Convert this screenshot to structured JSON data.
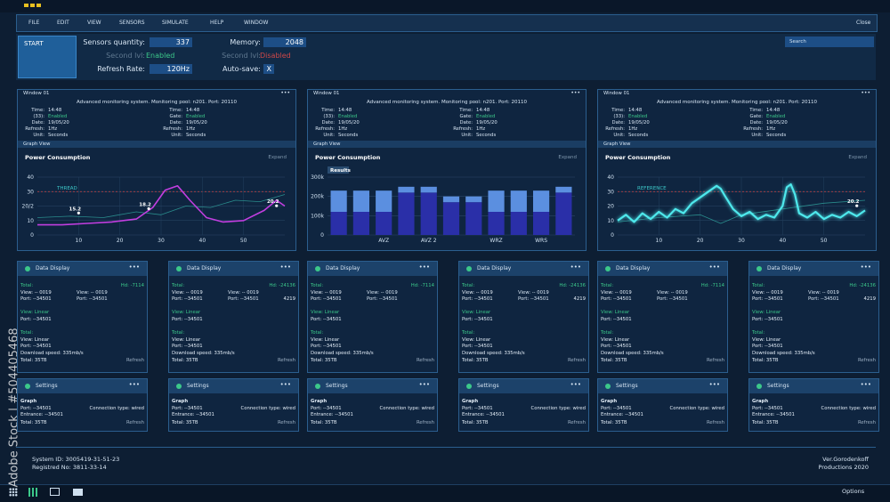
{
  "menu": [
    "FILE",
    "EDIT",
    "VIEW",
    "SENSORS",
    "SIMULATE",
    "HELP",
    "WINDOW"
  ],
  "close": "Close",
  "control": {
    "start": "START",
    "search": "Search",
    "fields": [
      {
        "label": "Sensors quantity:",
        "value": "337",
        "boxed": true
      },
      {
        "label": "Second lvl:",
        "value": "Enabled",
        "color": "#3cc88a"
      },
      {
        "label": "Refresh Rate:",
        "value": "120Hz",
        "boxed": true
      },
      {
        "label": "Memory:",
        "value": "2048",
        "boxed": true
      },
      {
        "label": "Second lvl:",
        "value": "Disabled",
        "color": "#d04848"
      },
      {
        "label": "Auto-save:",
        "value": "X",
        "boxed": true
      }
    ]
  },
  "windows": [
    {
      "title": "Window 01",
      "dots": "•••",
      "info": "Advanced monitoring system. Monitoring pool: n201. Port: 20110",
      "left": [
        [
          "Time:",
          "14:48"
        ],
        [
          "(33):",
          "Enabled"
        ],
        [
          "Date:",
          "19/05/20"
        ],
        [
          "Refresh:",
          "1Hz"
        ],
        [
          "Unit:",
          "Seconds"
        ]
      ],
      "right": [
        [
          "Time:",
          "14:48"
        ],
        [
          "Gate:",
          "Enabled"
        ],
        [
          "Date:",
          "19/05/20"
        ],
        [
          "Refresh:",
          "1Hz"
        ],
        [
          "Unit:",
          "Seconds"
        ]
      ],
      "graph_view": "Graph View",
      "chart": {
        "type": "line",
        "title": "Power Consumption",
        "expand": "Expand",
        "annotation": "THREAD",
        "xlim": [
          0,
          60
        ],
        "xticks": [
          10,
          20,
          30,
          40,
          50
        ],
        "ylim": [
          0,
          40
        ],
        "yticks": [
          0,
          10,
          {
            "value": 20,
            "label": "20/2"
          },
          30,
          40
        ],
        "reference_line": 30,
        "series": [
          {
            "color": "#2a8c8c",
            "x": [
              0,
              8,
              16,
              24,
              30,
              36,
              42,
              48,
              54,
              60
            ],
            "values": [
              12,
              13,
              12,
              16,
              14,
              20,
              19,
              24,
              23,
              28
            ]
          },
          {
            "color": "#c23ee0",
            "x": [
              0,
              6,
              12,
              18,
              24,
              28,
              31,
              34,
              37,
              41,
              45,
              50,
              55,
              58,
              60
            ],
            "values": [
              7,
              7,
              8,
              9,
              11,
              19,
              31,
              34,
              24,
              12,
              9,
              10,
              17,
              24,
              20
            ]
          },
          {
            "color": "#ffffff",
            "markers": true,
            "x": [
              10,
              27,
              58
            ],
            "values": [
              15.2,
              18.2,
              20.2
            ]
          }
        ]
      }
    },
    {
      "title": "Window 01",
      "dots": "•••",
      "info": "Advanced monitoring system. Monitoring pool: n201. Port: 20110",
      "left": [
        [
          "Time:",
          "14:48"
        ],
        [
          "(33):",
          "Enabled"
        ],
        [
          "Date:",
          "19/05/20"
        ],
        [
          "Refresh:",
          "1Hz"
        ],
        [
          "Unit:",
          "Seconds"
        ]
      ],
      "right": [
        [
          "Time:",
          "14:48"
        ],
        [
          "Gate:",
          "Enabled"
        ],
        [
          "Date:",
          "19/05/20"
        ],
        [
          "Refresh:",
          "1Hz"
        ],
        [
          "Unit:",
          "Seconds"
        ]
      ],
      "graph_view": "Graph View",
      "chart": {
        "type": "bar",
        "title": "Power Consumption",
        "expand": "Expand",
        "annotation": "Results",
        "categories": [
          null,
          null,
          "AVZ",
          null,
          "AVZ 2",
          null,
          null,
          "WRZ",
          null,
          "WRS",
          null
        ],
        "ylim": [
          0,
          300000
        ],
        "yticks": [
          0,
          {
            "value": 100000,
            "label": "100k"
          },
          {
            "value": 200000,
            "label": "200k"
          },
          {
            "value": 300000,
            "label": "300k"
          }
        ],
        "grid": true,
        "series": [
          {
            "color": "#2a2fa8",
            "values": [
              120000,
              120000,
              120000,
              220000,
              220000,
              170000,
              170000,
              120000,
              120000,
              120000,
              220000
            ]
          },
          {
            "color": "#5b8fe0",
            "values": [
              110000,
              110000,
              110000,
              30000,
              30000,
              30000,
              30000,
              110000,
              110000,
              110000,
              30000
            ]
          }
        ]
      }
    },
    {
      "title": "Window 01",
      "dots": "•••",
      "info": "Advanced monitoring system. Monitoring pool: n201. Port: 20110",
      "left": [
        [
          "Time:",
          "14:48"
        ],
        [
          "(33):",
          "Enabled"
        ],
        [
          "Date:",
          "19/05/20"
        ],
        [
          "Refresh:",
          "1Hz"
        ],
        [
          "Unit:",
          "Seconds"
        ]
      ],
      "right": [
        [
          "Time:",
          "14:48"
        ],
        [
          "Gate:",
          "Enabled"
        ],
        [
          "Date:",
          "19/05/20"
        ],
        [
          "Refresh:",
          "1Hz"
        ],
        [
          "Unit:",
          "Seconds"
        ]
      ],
      "graph_view": "Graph View",
      "chart": {
        "type": "line",
        "title": "Power Consumption",
        "expand": "Expand",
        "annotation": "REFERENCE",
        "xlim": [
          0,
          60
        ],
        "xticks": [
          10,
          20,
          30,
          40,
          50
        ],
        "ylim": [
          0,
          40
        ],
        "yticks": [
          0,
          10,
          20,
          30,
          40
        ],
        "reference_line": 30,
        "series": [
          {
            "color": "#2a8c8c",
            "x": [
              0,
              10,
              20,
              25,
              30,
              40,
              50,
              60
            ],
            "values": [
              9,
              12,
              14,
              8,
              14,
              18,
              22,
              24
            ]
          },
          {
            "color": "#4ee8ec",
            "x": [
              0,
              2,
              4,
              6,
              8,
              10,
              12,
              14,
              16,
              18,
              20,
              22,
              24,
              25,
              26,
              28,
              30,
              32,
              34,
              36,
              38,
              40,
              41,
              42,
              43,
              44,
              46,
              48,
              50,
              52,
              54,
              56,
              58,
              60
            ],
            "values": [
              10,
              14,
              9,
              15,
              11,
              16,
              12,
              18,
              15,
              22,
              26,
              30,
              34,
              32,
              27,
              18,
              13,
              16,
              11,
              14,
              12,
              20,
              33,
              35,
              28,
              15,
              12,
              16,
              11,
              14,
              12,
              16,
              13,
              17
            ]
          },
          {
            "color": "#ffffff",
            "markers": true,
            "x": [
              58
            ],
            "values": [
              20.2
            ]
          }
        ]
      }
    }
  ],
  "data_displays": [
    {
      "title": "Data Display",
      "dots": "•••",
      "rows": [
        {
          "left": "Total:",
          "right": "Hd: -7114",
          "accent": true
        },
        {
          "left": "View: -- 0019",
          "mid": "View: -- 0019"
        },
        {
          "left": "Port: --34501",
          "mid": "Port: --34501"
        },
        {
          "left": "View: Linear",
          "accent": true
        },
        {
          "left": "Port: --34501"
        },
        {
          "left": "Total:",
          "accent": true
        },
        {
          "left": "View: Linear"
        },
        {
          "left": "Port: --34501"
        },
        {
          "left": "Download speed: 335mb/s"
        },
        {
          "left": "Total: 35TB",
          "right": "Refresh"
        }
      ]
    },
    {
      "title": "Data Display",
      "dots": "•••",
      "rows": [
        {
          "left": "Total:",
          "right": "Hd: -24136",
          "accent": true
        },
        {
          "left": "View: -- 0019",
          "mid": "View: -- 0019"
        },
        {
          "left": "Port: --34501",
          "mid": "Port: --34501",
          "right": "4219"
        },
        {
          "left": "View: Linear",
          "accent": true
        },
        {
          "left": "Port: --34501"
        },
        {
          "left": "Total:",
          "accent": true
        },
        {
          "left": "View: Linear"
        },
        {
          "left": "Port: --34501"
        },
        {
          "left": "Download speed: 335mb/s"
        },
        {
          "left": "Total: 35TB",
          "right": "Refresh"
        }
      ]
    },
    {
      "title": "Data Display",
      "dots": "•••",
      "rows": [
        {
          "left": "Total:",
          "right": "Hd: -7114",
          "accent": true
        },
        {
          "left": "View: -- 0019",
          "mid": "View: -- 0019"
        },
        {
          "left": "Port: --34501",
          "mid": "Port: --34501"
        },
        {
          "left": "View: Linear",
          "accent": true
        },
        {
          "left": "Port: --34501"
        },
        {
          "left": "Total:",
          "accent": true
        },
        {
          "left": "View: Linear"
        },
        {
          "left": "Port: --34501"
        },
        {
          "left": "Download speed: 335mb/s"
        },
        {
          "left": "Total: 35TB",
          "right": "Refresh"
        }
      ]
    },
    {
      "title": "Data Display",
      "dots": "•••",
      "rows": [
        {
          "left": "Total:",
          "right": "Hd: -24136",
          "accent": true
        },
        {
          "left": "View: -- 0019",
          "mid": "View: -- 0019"
        },
        {
          "left": "Port: --34501",
          "mid": "Port: --34501",
          "right": "4219"
        },
        {
          "left": "View: Linear",
          "accent": true
        },
        {
          "left": "Port: --34501"
        },
        {
          "left": "Total:",
          "accent": true
        },
        {
          "left": "View: Linear"
        },
        {
          "left": "Port: --34501"
        },
        {
          "left": "Download speed: 335mb/s"
        },
        {
          "left": "Total: 35TB",
          "right": "Refresh"
        }
      ]
    },
    {
      "title": "Data Display",
      "dots": "•••",
      "rows": [
        {
          "left": "Total:",
          "right": "Hd: -7114",
          "accent": true
        },
        {
          "left": "View: -- 0019",
          "mid": "View: -- 0019"
        },
        {
          "left": "Port: --34501",
          "mid": "Port: --34501"
        },
        {
          "left": "View: Linear",
          "accent": true
        },
        {
          "left": "Port: --34501"
        },
        {
          "left": "Total:",
          "accent": true
        },
        {
          "left": "View: Linear"
        },
        {
          "left": "Port: --34501"
        },
        {
          "left": "Download speed: 335mb/s"
        },
        {
          "left": "Total: 35TB",
          "right": "Refresh"
        }
      ]
    },
    {
      "title": "Data Display",
      "dots": "•••",
      "rows": [
        {
          "left": "Total:",
          "right": "Hd: -24136",
          "accent": true
        },
        {
          "left": "View: -- 0019",
          "mid": "View: -- 0019"
        },
        {
          "left": "Port: --34501",
          "mid": "Port: --34501",
          "right": "4219"
        },
        {
          "left": "View: Linear",
          "accent": true
        },
        {
          "left": "Port: --34501"
        },
        {
          "left": "Total:",
          "accent": true
        },
        {
          "left": "View: Linear"
        },
        {
          "left": "Port: --34501"
        },
        {
          "left": "Download speed: 335mb/s"
        },
        {
          "left": "Total: 35TB",
          "right": "Refresh"
        }
      ]
    }
  ],
  "settings": [
    {
      "title": "Settings",
      "dots": "•••",
      "rows": [
        {
          "left": "Graph",
          "bold": true
        },
        {
          "left": "Port: --34501",
          "right": "Connection type: wired"
        },
        {
          "left": "Entrance: --34501"
        },
        {
          "left": "Total: 35TB",
          "right": "Refresh"
        }
      ]
    },
    {
      "title": "Settings",
      "dots": "•••",
      "rows": [
        {
          "left": "Graph",
          "bold": true
        },
        {
          "left": "Port: --34501",
          "right": "Connection type: wired"
        },
        {
          "left": "Entrance: --34501"
        },
        {
          "left": "Total: 35TB",
          "right": "Refresh"
        }
      ]
    },
    {
      "title": "Settings",
      "dots": "•••",
      "rows": [
        {
          "left": "Graph",
          "bold": true
        },
        {
          "left": "Port: --34501",
          "right": "Connection type: wired"
        },
        {
          "left": "Entrance: --34501"
        },
        {
          "left": "Total: 35TB",
          "right": "Refresh"
        }
      ]
    },
    {
      "title": "Settings",
      "dots": "•••",
      "rows": [
        {
          "left": "Graph",
          "bold": true
        },
        {
          "left": "Port: --34501",
          "right": "Connection type: wired"
        },
        {
          "left": "Entrance: --34501"
        },
        {
          "left": "Total: 35TB",
          "right": "Refresh"
        }
      ]
    },
    {
      "title": "Settings",
      "dots": "•••",
      "rows": [
        {
          "left": "Graph",
          "bold": true
        },
        {
          "left": "Port: --34501",
          "right": "Connection type: wired"
        },
        {
          "left": "Entrance: --34501"
        },
        {
          "left": "Total: 35TB",
          "right": "Refresh"
        }
      ]
    },
    {
      "title": "Settings",
      "dots": "•••",
      "rows": [
        {
          "left": "Graph",
          "bold": true
        },
        {
          "left": "Port: --34501",
          "right": "Connection type: wired"
        },
        {
          "left": "Entrance: --34501"
        },
        {
          "left": "Total: 35TB",
          "right": "Refresh"
        }
      ]
    }
  ],
  "footer": {
    "system_id": "System ID: 3005419-31-51-23",
    "registry": "Registred No: 3811-33-14",
    "version": "Ver.Gorodenkoff",
    "productions": "Productions 2020"
  },
  "taskbar": {
    "options": "Options"
  },
  "watermark": "Adobe Stock | #504405468"
}
